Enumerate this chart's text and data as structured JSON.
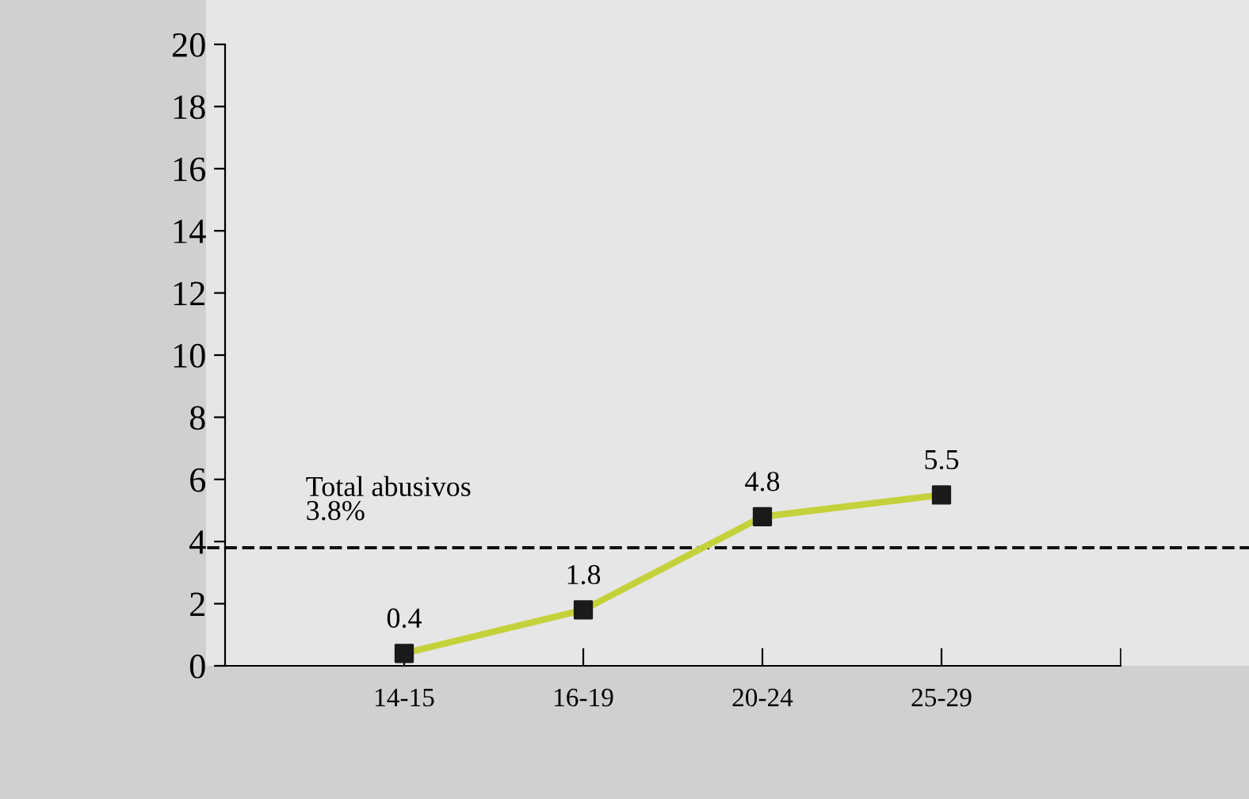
{
  "chart_data": {
    "type": "line",
    "categories": [
      "14-15",
      "16-19",
      "20-24",
      "25-29"
    ],
    "series": [
      {
        "color": "#c5d13a",
        "values": [
          0.4,
          1.8,
          4.8,
          5.5
        ]
      }
    ],
    "ylim": [
      0,
      20
    ],
    "yticks": [
      0,
      2,
      4,
      6,
      8,
      10,
      12,
      14,
      16,
      18,
      20
    ],
    "marker": "square",
    "line_style": "solid",
    "data_labels": true,
    "grid": false,
    "ref_lines": [
      {
        "axis": "y",
        "value": 3.8,
        "label": "Total abusivos\n3.8%",
        "color": "#111111",
        "line_style": "dashed"
      }
    ]
  }
}
